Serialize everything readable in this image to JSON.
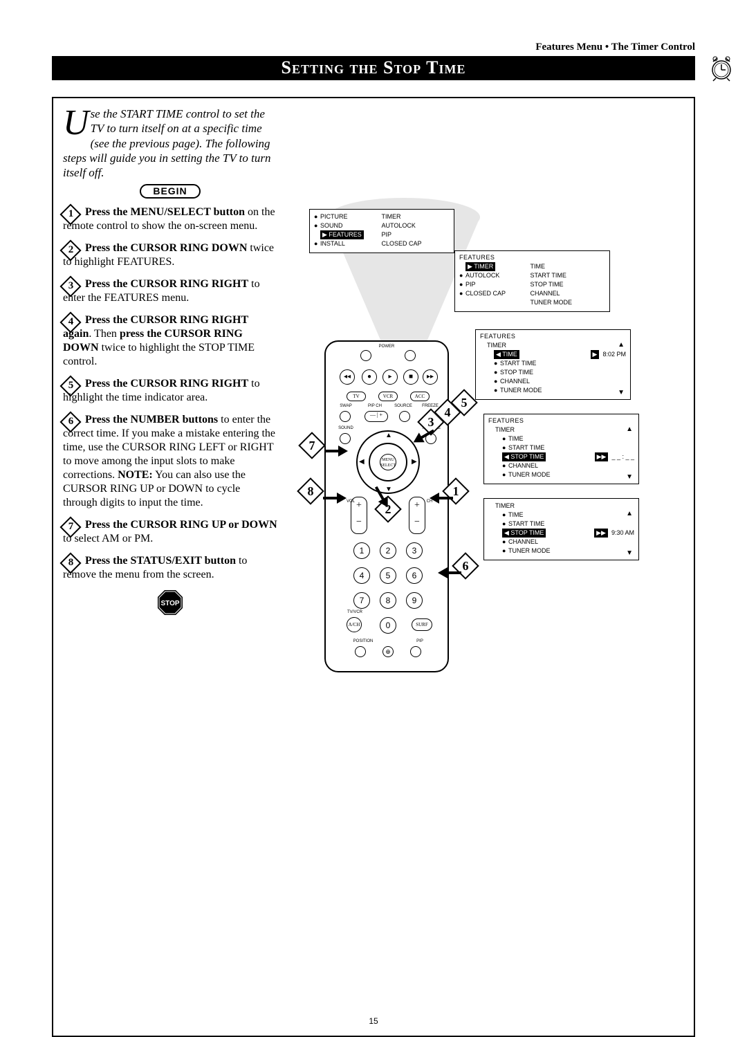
{
  "breadcrumb": "Features Menu • The Timer Control",
  "title": "Setting the Stop Time",
  "page_number": "15",
  "intro": {
    "dropcap": "U",
    "text": "se the START TIME control to set the TV to turn itself on at a specific time (see the previous page). The following steps will guide you in setting the TV to turn itself off."
  },
  "begin_label": "BEGIN",
  "stop_label": "STOP",
  "steps": [
    {
      "n": "1",
      "bold": "Press the MENU/SELECT button",
      "rest": " on the remote control to show the on-screen menu."
    },
    {
      "n": "2",
      "bold": "Press the CURSOR RING DOWN",
      "rest": " twice to highlight FEATURES."
    },
    {
      "n": "3",
      "bold": "Press the CURSOR RING RIGHT",
      "rest": " to enter the FEATURES menu."
    },
    {
      "n": "4",
      "bold": "Press the CURSOR RING RIGHT again",
      "rest": ". Then ",
      "bold2": "press the CURSOR RING DOWN",
      "rest2": " twice to highlight the STOP TIME control."
    },
    {
      "n": "5",
      "bold": "Press the CURSOR RING RIGHT",
      "rest": " to highlight the time indicator area."
    },
    {
      "n": "6",
      "bold": "Press the NUMBER buttons",
      "rest": " to enter the correct time. If you make a mistake entering the time, use the CURSOR RING LEFT or RIGHT to move among the input slots to make corrections. ",
      "bold2": "NOTE:",
      "rest2": " You can also use the CURSOR RING UP or DOWN to cycle through digits to input the time."
    },
    {
      "n": "7",
      "bold": "Press the CURSOR RING UP or DOWN",
      "rest": " to select AM or PM."
    },
    {
      "n": "8",
      "bold": "Press the STATUS/EXIT button",
      "rest": " to remove the menu from the screen."
    }
  ],
  "menu1": {
    "left": [
      "PICTURE",
      "SOUND",
      "FEATURES",
      "INSTALL"
    ],
    "right": [
      "TIMER",
      "AUTOLOCK",
      "PIP",
      "CLOSED CAP"
    ],
    "highlight_index": 2
  },
  "menu2": {
    "header": "FEATURES",
    "left": [
      "TIMER",
      "AUTOLOCK",
      "PIP",
      "CLOSED CAP"
    ],
    "right": [
      "TIME",
      "START TIME",
      "STOP TIME",
      "CHANNEL",
      "TUNER MODE"
    ],
    "highlight_index": 0
  },
  "menu3": {
    "header": "FEATURES",
    "sub": "TIMER",
    "items": [
      "TIME",
      "START TIME",
      "STOP TIME",
      "CHANNEL",
      "TUNER MODE"
    ],
    "highlight_index": 0,
    "value": "8:02 PM"
  },
  "menu4": {
    "header": "FEATURES",
    "sub": "TIMER",
    "items": [
      "TIME",
      "START TIME",
      "STOP TIME",
      "CHANNEL",
      "TUNER MODE"
    ],
    "highlight_index": 2,
    "value": "_ _ : _ _"
  },
  "menu5": {
    "sub": "TIMER",
    "items": [
      "TIME",
      "START TIME",
      "STOP TIME",
      "CHANNEL",
      "TUNER MODE"
    ],
    "highlight_index": 2,
    "value": "9:30 AM"
  },
  "remote_labels": {
    "power": "POWER",
    "tv": "TV",
    "vcr": "VCR",
    "acc": "ACC",
    "swap": "SWAP",
    "pipch": "PIP CH",
    "source": "SOURCE",
    "freeze": "FREEZE",
    "sound": "SOUND",
    "picture": "PICTURE",
    "menu": "MENU\nSELECT",
    "vol": "VOL",
    "ch": "CH",
    "tvvcr": "TV/VCR",
    "surf": "SURF",
    "aich": "A/CH",
    "position": "POSITION",
    "pip": "PIP"
  },
  "numbers": [
    "1",
    "2",
    "3",
    "4",
    "5",
    "6",
    "7",
    "8",
    "9",
    "0"
  ],
  "colors": {
    "black": "#000000",
    "white": "#ffffff",
    "gray": "#e6e6e6"
  }
}
